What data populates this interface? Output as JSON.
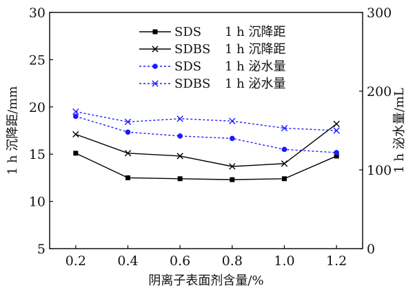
{
  "chart_data": {
    "type": "line",
    "x": [
      0.2,
      0.4,
      0.6,
      0.8,
      1.0,
      1.2
    ],
    "x_tick_labels": [
      "0.2",
      "0.4",
      "0.6",
      "0.8",
      "1.0",
      "1.2"
    ],
    "xlabel": "阴离子表面剂含量/%",
    "ylabel_left": "1 h 沉降距/mm",
    "ylabel_right": "1 h 泌水量/mL",
    "ylim_left": [
      5,
      30
    ],
    "ylim_right": [
      0,
      300
    ],
    "y_ticks_left": [
      "5",
      "10",
      "15",
      "20",
      "25",
      "30"
    ],
    "y_ticks_right": [
      "0",
      "100",
      "200",
      "300"
    ],
    "grid": false,
    "legend_position": "top-center",
    "series": [
      {
        "name": "SDS",
        "label": "1 h 沉降距",
        "axis": "left",
        "marker": "square",
        "line": "solid",
        "color": "#000000",
        "values": [
          15.1,
          12.5,
          12.4,
          12.3,
          12.4,
          14.8
        ]
      },
      {
        "name": "SDBS",
        "label": "1 h 沉降距",
        "axis": "left",
        "marker": "x",
        "line": "solid",
        "color": "#000000",
        "values": [
          17.1,
          15.1,
          14.8,
          13.7,
          14.0,
          18.2
        ]
      },
      {
        "name": "SDS",
        "label": "1 h 泌水量",
        "axis": "right",
        "marker": "circle",
        "line": "dotted",
        "color": "#1a1aff",
        "values": [
          168,
          148,
          143,
          140,
          126,
          122
        ]
      },
      {
        "name": "SDBS",
        "label": "1 h 泌水量",
        "axis": "right",
        "marker": "x",
        "line": "dotted",
        "color": "#1a1aff",
        "values": [
          174,
          161,
          165,
          162,
          153,
          150
        ]
      }
    ]
  }
}
